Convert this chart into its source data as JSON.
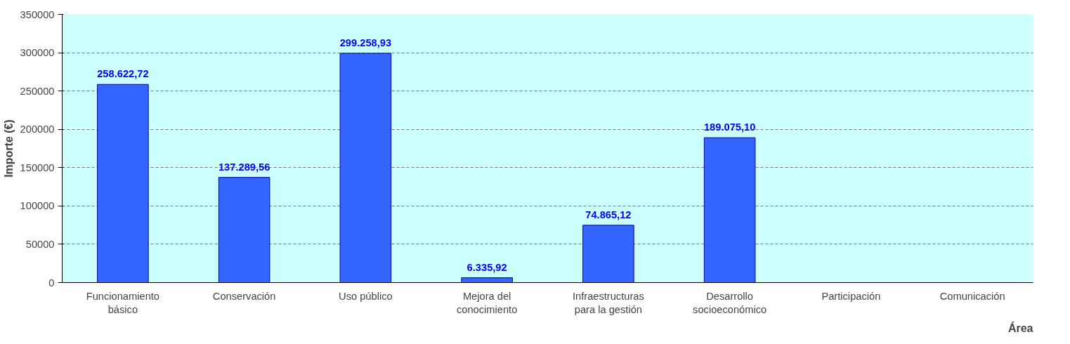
{
  "chart_data": {
    "type": "bar",
    "xlabel": "Área",
    "ylabel": "Importe (€)",
    "categories": [
      "Funcionamiento básico",
      "Conservación",
      "Uso público",
      "Mejora del conocimiento",
      "Infraestructuras para la gestión",
      "Desarrollo socioeconómico",
      "Participación",
      "Comunicación"
    ],
    "values": [
      258622.72,
      137289.56,
      299258.93,
      6335.92,
      74865.12,
      189075.1,
      null,
      null
    ],
    "value_labels": [
      "258.622,72",
      "137.289,56",
      "299.258,93",
      "6.335,92",
      "74.865,12",
      "189.075,10",
      null,
      null
    ],
    "color": "#3366ff",
    "ylim": [
      0,
      350000
    ],
    "yticks": [
      0,
      50000,
      100000,
      150000,
      200000,
      250000,
      300000,
      350000
    ],
    "grid": "y"
  }
}
